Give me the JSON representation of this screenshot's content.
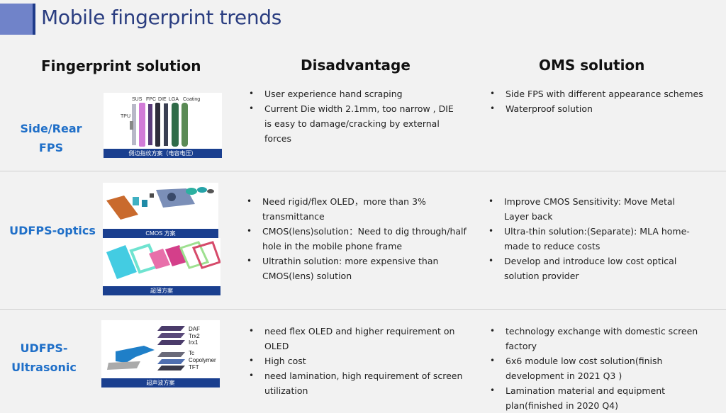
{
  "title": "Mobile fingerprint trends",
  "columns": {
    "solution": "Fingerprint solution",
    "disadvantage": "Disadvantage",
    "oms": "OMS solution"
  },
  "rows": [
    {
      "label": "Side/Rear FPS",
      "image_labels": [
        "SUS",
        "FPC",
        "DIE",
        "LGA",
        "Coating",
        "TPU"
      ],
      "caption": "侧边指纹方案（电容电压）",
      "disadvantages": [
        "User experience hand scraping",
        "Current Die width 2.1mm, too narrow , DIE is easy to damage/cracking by external forces"
      ],
      "oms": [
        "Side FPS with different appearance schemes",
        "Waterproof solution"
      ]
    },
    {
      "label": "UDFPS-optics",
      "caption_top": "CMOS 方案",
      "caption_bottom": "超薄方案",
      "disadvantages": [
        "Need rigid/flex OLED，more than 3% transmittance",
        "CMOS(lens)solution：Need to dig through/half hole in the mobile phone frame",
        "Ultrathin solution: more expensive than CMOS(lens) solution"
      ],
      "oms": [
        "Improve CMOS Sensitivity: Move Metal Layer back",
        "Ultra-thin solution:(Separate): MLA home-made to reduce costs",
        "Develop and introduce low cost optical solution provider"
      ]
    },
    {
      "label_line1": "UDFPS-",
      "label_line2": "Ultrasonic",
      "image_labels": [
        "DAF",
        "Trx2",
        "Irx1",
        "Tc",
        "Copolymer",
        "TFT"
      ],
      "caption": "超声波方案",
      "disadvantages": [
        "need flex OLED and higher requirement on OLED",
        "High cost",
        "need lamination, high requirement of screen utilization"
      ],
      "oms": [
        "technology exchange with domestic screen factory",
        "6x6 module low cost solution(finish development in 2021 Q3 )",
        "Lamination material and equipment plan(finished in 2020 Q4)"
      ]
    }
  ]
}
